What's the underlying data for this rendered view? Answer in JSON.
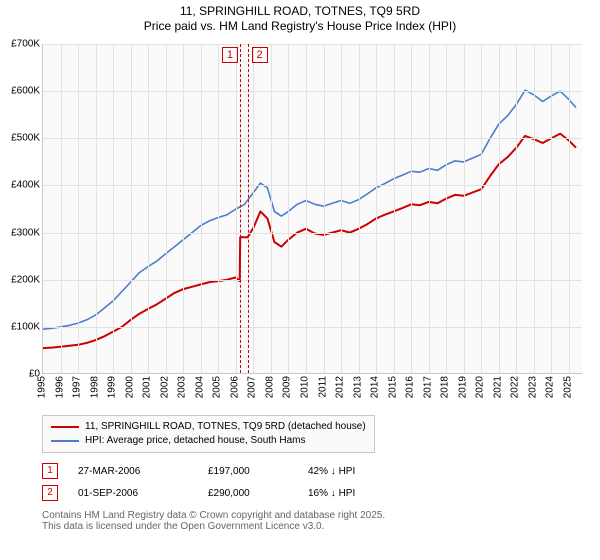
{
  "title": {
    "line1": "11, SPRINGHILL ROAD, TOTNES, TQ9 5RD",
    "line2": "Price paid vs. HM Land Registry's House Price Index (HPI)",
    "fontsize": 12
  },
  "chart": {
    "type": "line",
    "background_color": "#fafafa",
    "grid_color": "#e2e2e2",
    "axis_color": "#c8c8c8",
    "label_fontsize": 10,
    "x": {
      "min": 1995,
      "max": 2025.8,
      "ticks": [
        1995,
        1996,
        1997,
        1998,
        1999,
        2000,
        2001,
        2002,
        2003,
        2004,
        2005,
        2006,
        2007,
        2008,
        2009,
        2010,
        2011,
        2012,
        2013,
        2014,
        2015,
        2016,
        2017,
        2018,
        2019,
        2020,
        2021,
        2022,
        2023,
        2024,
        2025
      ],
      "tick_labels": [
        "1995",
        "1996",
        "1997",
        "1998",
        "1999",
        "2000",
        "2001",
        "2002",
        "2003",
        "2004",
        "2005",
        "2006",
        "2007",
        "2008",
        "2009",
        "2010",
        "2011",
        "2012",
        "2013",
        "2014",
        "2015",
        "2016",
        "2017",
        "2018",
        "2019",
        "2020",
        "2021",
        "2022",
        "2023",
        "2024",
        "2025"
      ],
      "label_rotation_deg": -90
    },
    "y": {
      "min": 0,
      "max": 700000,
      "ticks": [
        0,
        100000,
        200000,
        300000,
        400000,
        500000,
        600000,
        700000
      ],
      "tick_labels": [
        "£0",
        "£100K",
        "£200K",
        "£300K",
        "£400K",
        "£500K",
        "£600K",
        "£700K"
      ]
    },
    "series": [
      {
        "name": "11, SPRINGHILL ROAD, TOTNES, TQ9 5RD (detached house)",
        "color": "#cc0000",
        "line_width": 2,
        "data": [
          [
            1995.0,
            55000
          ],
          [
            1995.5,
            56000
          ],
          [
            1996.0,
            58000
          ],
          [
            1996.5,
            60000
          ],
          [
            1997.0,
            62000
          ],
          [
            1997.5,
            66000
          ],
          [
            1998.0,
            72000
          ],
          [
            1998.5,
            80000
          ],
          [
            1999.0,
            90000
          ],
          [
            1999.5,
            100000
          ],
          [
            2000.0,
            115000
          ],
          [
            2000.5,
            128000
          ],
          [
            2001.0,
            138000
          ],
          [
            2001.5,
            148000
          ],
          [
            2002.0,
            160000
          ],
          [
            2002.5,
            172000
          ],
          [
            2003.0,
            180000
          ],
          [
            2003.5,
            185000
          ],
          [
            2004.0,
            190000
          ],
          [
            2004.5,
            195000
          ],
          [
            2005.0,
            197000
          ],
          [
            2005.5,
            200000
          ],
          [
            2006.0,
            205000
          ],
          [
            2006.2,
            197000
          ],
          [
            2006.22,
            197000
          ],
          [
            2006.25,
            290000
          ],
          [
            2006.67,
            290000
          ],
          [
            2007.0,
            310000
          ],
          [
            2007.4,
            345000
          ],
          [
            2007.8,
            330000
          ],
          [
            2008.2,
            280000
          ],
          [
            2008.6,
            270000
          ],
          [
            2009.0,
            285000
          ],
          [
            2009.5,
            300000
          ],
          [
            2010.0,
            308000
          ],
          [
            2010.5,
            298000
          ],
          [
            2011.0,
            295000
          ],
          [
            2011.5,
            300000
          ],
          [
            2012.0,
            305000
          ],
          [
            2012.5,
            300000
          ],
          [
            2013.0,
            308000
          ],
          [
            2013.5,
            318000
          ],
          [
            2014.0,
            330000
          ],
          [
            2014.5,
            338000
          ],
          [
            2015.0,
            345000
          ],
          [
            2015.5,
            352000
          ],
          [
            2016.0,
            360000
          ],
          [
            2016.5,
            358000
          ],
          [
            2017.0,
            365000
          ],
          [
            2017.5,
            362000
          ],
          [
            2018.0,
            372000
          ],
          [
            2018.5,
            380000
          ],
          [
            2019.0,
            378000
          ],
          [
            2019.5,
            385000
          ],
          [
            2020.0,
            392000
          ],
          [
            2020.5,
            420000
          ],
          [
            2021.0,
            445000
          ],
          [
            2021.5,
            460000
          ],
          [
            2022.0,
            480000
          ],
          [
            2022.5,
            505000
          ],
          [
            2023.0,
            498000
          ],
          [
            2023.5,
            490000
          ],
          [
            2024.0,
            500000
          ],
          [
            2024.5,
            510000
          ],
          [
            2025.0,
            495000
          ],
          [
            2025.4,
            480000
          ]
        ]
      },
      {
        "name": "HPI: Average price, detached house, South Hams",
        "color": "#4a7ec8",
        "line_width": 1.6,
        "data": [
          [
            1995.0,
            95000
          ],
          [
            1995.5,
            97000
          ],
          [
            1996.0,
            100000
          ],
          [
            1996.5,
            103000
          ],
          [
            1997.0,
            108000
          ],
          [
            1997.5,
            115000
          ],
          [
            1998.0,
            125000
          ],
          [
            1998.5,
            140000
          ],
          [
            1999.0,
            155000
          ],
          [
            1999.5,
            175000
          ],
          [
            2000.0,
            195000
          ],
          [
            2000.5,
            215000
          ],
          [
            2001.0,
            228000
          ],
          [
            2001.5,
            240000
          ],
          [
            2002.0,
            255000
          ],
          [
            2002.5,
            270000
          ],
          [
            2003.0,
            285000
          ],
          [
            2003.5,
            300000
          ],
          [
            2004.0,
            315000
          ],
          [
            2004.5,
            325000
          ],
          [
            2005.0,
            332000
          ],
          [
            2005.5,
            338000
          ],
          [
            2006.0,
            350000
          ],
          [
            2006.5,
            360000
          ],
          [
            2007.0,
            385000
          ],
          [
            2007.4,
            405000
          ],
          [
            2007.8,
            395000
          ],
          [
            2008.2,
            345000
          ],
          [
            2008.6,
            335000
          ],
          [
            2009.0,
            345000
          ],
          [
            2009.5,
            360000
          ],
          [
            2010.0,
            368000
          ],
          [
            2010.5,
            360000
          ],
          [
            2011.0,
            356000
          ],
          [
            2011.5,
            362000
          ],
          [
            2012.0,
            368000
          ],
          [
            2012.5,
            362000
          ],
          [
            2013.0,
            370000
          ],
          [
            2013.5,
            382000
          ],
          [
            2014.0,
            395000
          ],
          [
            2014.5,
            404000
          ],
          [
            2015.0,
            414000
          ],
          [
            2015.5,
            422000
          ],
          [
            2016.0,
            430000
          ],
          [
            2016.5,
            428000
          ],
          [
            2017.0,
            436000
          ],
          [
            2017.5,
            432000
          ],
          [
            2018.0,
            444000
          ],
          [
            2018.5,
            452000
          ],
          [
            2019.0,
            450000
          ],
          [
            2019.5,
            458000
          ],
          [
            2020.0,
            466000
          ],
          [
            2020.5,
            500000
          ],
          [
            2021.0,
            530000
          ],
          [
            2021.5,
            548000
          ],
          [
            2022.0,
            572000
          ],
          [
            2022.5,
            602000
          ],
          [
            2023.0,
            592000
          ],
          [
            2023.5,
            578000
          ],
          [
            2024.0,
            590000
          ],
          [
            2024.5,
            600000
          ],
          [
            2025.0,
            582000
          ],
          [
            2025.4,
            565000
          ]
        ]
      }
    ],
    "annotations": [
      {
        "id": "1",
        "x": 2006.23,
        "marker_color": "#cc0000",
        "box_color": "#cc0000"
      },
      {
        "id": "2",
        "x": 2006.67,
        "marker_color": "#cc0000",
        "box_color": "#cc0000"
      }
    ]
  },
  "legend": {
    "items": [
      {
        "color": "#cc0000",
        "label": "11, SPRINGHILL ROAD, TOTNES, TQ9 5RD (detached house)"
      },
      {
        "color": "#4a7ec8",
        "label": "HPI: Average price, detached house, South Hams"
      }
    ]
  },
  "annotation_table": {
    "rows": [
      {
        "id": "1",
        "date": "27-MAR-2006",
        "price": "£197,000",
        "pct": "42% ↓ HPI"
      },
      {
        "id": "2",
        "date": "01-SEP-2006",
        "price": "£290,000",
        "pct": "16% ↓ HPI"
      }
    ]
  },
  "credits": {
    "line1": "Contains HM Land Registry data © Crown copyright and database right 2025.",
    "line2": "This data is licensed under the Open Government Licence v3.0.",
    "color": "#666666"
  }
}
